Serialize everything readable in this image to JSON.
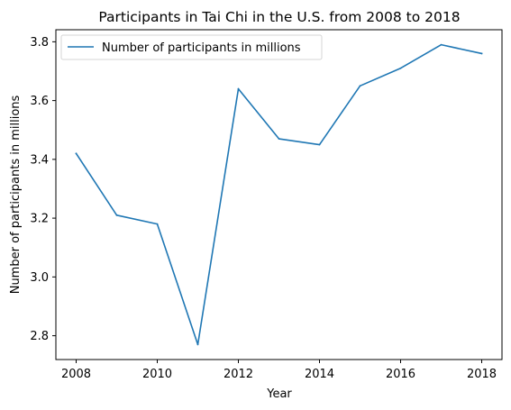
{
  "chart_data": {
    "type": "line",
    "title": "Participants in Tai Chi in the U.S. from 2008 to 2018",
    "xlabel": "Year",
    "ylabel": "Number of participants in millions",
    "x": [
      2008,
      2009,
      2010,
      2011,
      2012,
      2013,
      2014,
      2015,
      2016,
      2017,
      2018
    ],
    "series": [
      {
        "name": "Number of participants in millions",
        "values": [
          3.42,
          3.21,
          3.18,
          2.77,
          3.64,
          3.47,
          3.45,
          3.65,
          3.71,
          3.79,
          3.76
        ],
        "color": "#1f77b4"
      }
    ],
    "xticks": [
      "2008",
      "2010",
      "2012",
      "2014",
      "2016",
      "2018"
    ],
    "yticks": [
      "2.8",
      "3.0",
      "3.2",
      "3.4",
      "3.6",
      "3.8"
    ],
    "xlim": [
      2007.5,
      2018.5
    ],
    "ylim": [
      2.719,
      3.841
    ],
    "grid": false,
    "legend_position": "top-left"
  }
}
